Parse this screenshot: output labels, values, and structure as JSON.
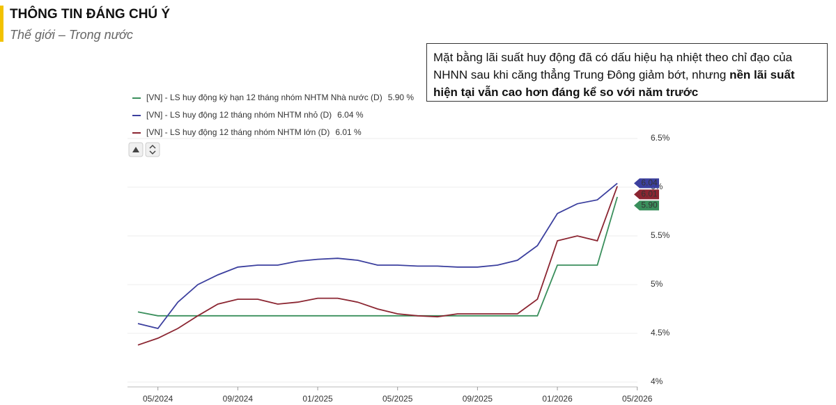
{
  "header": {
    "title": "THÔNG TIN ĐÁNG CHÚ Ý",
    "subtitle": "Thế giới – Trong nước"
  },
  "note": {
    "text": "Mặt bằng lãi suất huy động đã có dấu hiệu hạ nhiệt theo chỉ đạo của NHNN sau khi căng thẳng Trung Đông giảm bớt, nhưng ",
    "bold": "nền lãi suất hiện tại vẫn cao hơn đáng kể so với năm trước"
  },
  "chart_data": {
    "type": "line",
    "x": [
      "04/2024",
      "05/2024",
      "06/2024",
      "07/2024",
      "08/2024",
      "09/2024",
      "10/2024",
      "11/2024",
      "12/2024",
      "01/2025",
      "02/2025",
      "03/2025",
      "04/2025",
      "05/2025",
      "06/2025",
      "07/2025",
      "08/2025",
      "09/2025",
      "10/2025",
      "11/2025",
      "12/2025",
      "01/2026",
      "02/2026",
      "03/2026",
      "04/2026"
    ],
    "xticks": [
      "05/2024",
      "09/2024",
      "01/2025",
      "05/2025",
      "09/2025",
      "01/2026",
      "05/2026"
    ],
    "ylim": [
      4,
      6.5
    ],
    "yticks": [
      {
        "value": 4,
        "label": "4%"
      },
      {
        "value": 4.5,
        "label": "4.5%"
      },
      {
        "value": 5,
        "label": "5%"
      },
      {
        "value": 5.5,
        "label": "5.5%"
      },
      {
        "value": 6,
        "label": "6%"
      },
      {
        "value": 6.5,
        "label": "6.5%"
      }
    ],
    "grid": true,
    "series": [
      {
        "name": "[VN] - LS huy động kỳ hạn 12 tháng nhóm NHTM Nhà nước (D)",
        "legend_value": "5.90 %",
        "end_tag": "5.90",
        "color": "#3a8f5c",
        "values": [
          4.72,
          4.68,
          4.68,
          4.68,
          4.68,
          4.68,
          4.68,
          4.68,
          4.68,
          4.68,
          4.68,
          4.68,
          4.68,
          4.68,
          4.68,
          4.68,
          4.68,
          4.68,
          4.68,
          4.68,
          4.68,
          5.2,
          5.2,
          5.2,
          5.9
        ]
      },
      {
        "name": "[VN] - LS huy động 12 tháng nhóm NHTM nhỏ (D)",
        "legend_value": "6.04 %",
        "end_tag": "6.04",
        "color": "#3b3f9e",
        "values": [
          4.6,
          4.55,
          4.82,
          5.0,
          5.1,
          5.18,
          5.2,
          5.2,
          5.24,
          5.26,
          5.27,
          5.25,
          5.2,
          5.2,
          5.19,
          5.19,
          5.18,
          5.18,
          5.2,
          5.25,
          5.4,
          5.73,
          5.83,
          5.87,
          6.04
        ]
      },
      {
        "name": "[VN] - LS huy động 12 tháng nhóm NHTM lớn (D)",
        "legend_value": "6.01 %",
        "end_tag": "6.01",
        "color": "#8b2531",
        "values": [
          4.38,
          4.45,
          4.55,
          4.68,
          4.8,
          4.85,
          4.85,
          4.8,
          4.82,
          4.86,
          4.86,
          4.82,
          4.75,
          4.7,
          4.68,
          4.67,
          4.7,
          4.7,
          4.7,
          4.7,
          4.85,
          5.45,
          5.5,
          5.45,
          6.01
        ]
      }
    ]
  }
}
